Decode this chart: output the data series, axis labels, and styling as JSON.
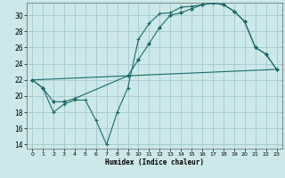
{
  "xlabel": "Humidex (Indice chaleur)",
  "background_color": "#cce8e8",
  "grid_color": "#aacccc",
  "line_color": "#1a6b6b",
  "xlim": [
    -0.5,
    23.5
  ],
  "ylim": [
    13.5,
    31.5
  ],
  "xticks": [
    0,
    1,
    2,
    3,
    4,
    5,
    6,
    7,
    8,
    9,
    10,
    11,
    12,
    13,
    14,
    15,
    16,
    17,
    18,
    19,
    20,
    21,
    22,
    23
  ],
  "yticks": [
    14,
    16,
    18,
    20,
    22,
    24,
    26,
    28,
    30
  ],
  "line1_x": [
    0,
    1,
    2,
    3,
    4,
    5,
    6,
    7,
    8,
    9,
    10,
    11,
    12,
    13,
    14,
    15,
    16,
    17,
    18,
    19,
    20,
    21,
    22,
    23
  ],
  "line1_y": [
    22,
    21,
    18,
    19,
    19.5,
    19.5,
    17,
    14,
    18,
    21,
    27,
    29,
    30.2,
    30.3,
    31.0,
    31.1,
    31.3,
    31.5,
    31.3,
    30.5,
    29.2,
    26.0,
    25.2,
    23.3
  ],
  "line2_x": [
    0,
    1,
    2,
    3,
    4,
    9,
    10,
    11,
    12,
    13,
    14,
    15,
    16,
    17,
    18,
    19,
    20,
    21,
    22,
    23
  ],
  "line2_y": [
    22,
    21,
    19.3,
    19.3,
    19.7,
    22.5,
    24.5,
    26.5,
    28.5,
    30.0,
    30.3,
    30.8,
    31.3,
    31.5,
    31.3,
    30.5,
    29.2,
    26.0,
    25.2,
    23.3
  ],
  "line3_x": [
    0,
    23
  ],
  "line3_y": [
    22,
    23.3
  ]
}
